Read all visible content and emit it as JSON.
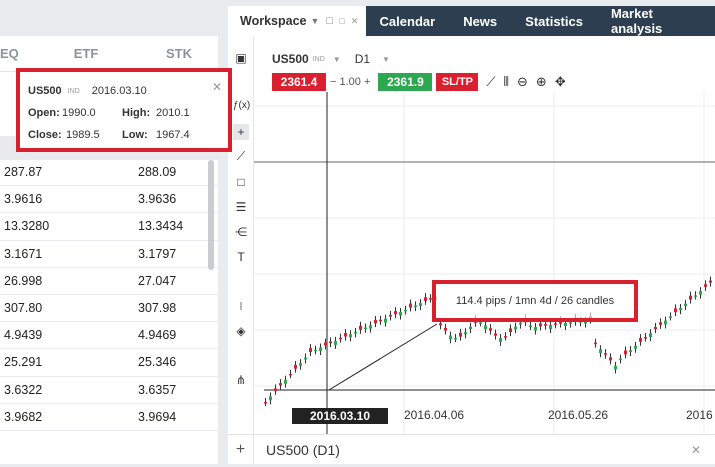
{
  "tabs": {
    "workspace": "Workspace",
    "items": [
      "Calendar",
      "News",
      "Statistics",
      "Market analysis"
    ]
  },
  "market_watch": {
    "headers": [
      "EQ",
      "ETF",
      "STK"
    ],
    "rows": [
      {
        "bid": "287.87",
        "ask": "288.09"
      },
      {
        "bid": "3.9616",
        "ask": "3.9636"
      },
      {
        "bid": "13.3280",
        "ask": "13.3434"
      },
      {
        "bid": "3.1671",
        "ask": "3.1797"
      },
      {
        "bid": "26.998",
        "ask": "27.047"
      },
      {
        "bid": "307.80",
        "ask": "307.98"
      },
      {
        "bid": "4.9439",
        "ask": "4.9469"
      },
      {
        "bid": "25.291",
        "ask": "25.346"
      },
      {
        "bid": "3.6322",
        "ask": "3.6357"
      },
      {
        "bid": "3.9682",
        "ask": "3.9694"
      }
    ]
  },
  "info_box": {
    "symbol": "US500",
    "tag": "IND",
    "date": "2016.03.10",
    "open_label": "Open:",
    "open": "1990.0",
    "high_label": "High:",
    "high": "2010.1",
    "close_label": "Close:",
    "close": "1989.5",
    "low_label": "Low:",
    "low": "1967.4"
  },
  "chart_header": {
    "symbol": "US500",
    "tag": "IND",
    "timeframe": "D1",
    "sell_price": "2361.4",
    "volume": "1.00",
    "buy_price": "2361.9",
    "sltp": "SL/TP"
  },
  "measurement": "114.4 pips / 1mn 4d / 26 candles",
  "date_axis": {
    "active": "2016.03.10",
    "labels": [
      "2016.04.06",
      "2016.05.26",
      "2016"
    ]
  },
  "bottom_tab": "US500 (D1)",
  "colors": {
    "sell": "#d9202e",
    "buy": "#2ea84e",
    "dark_tab": "#2c3e50",
    "highlight": "#d9202e"
  }
}
